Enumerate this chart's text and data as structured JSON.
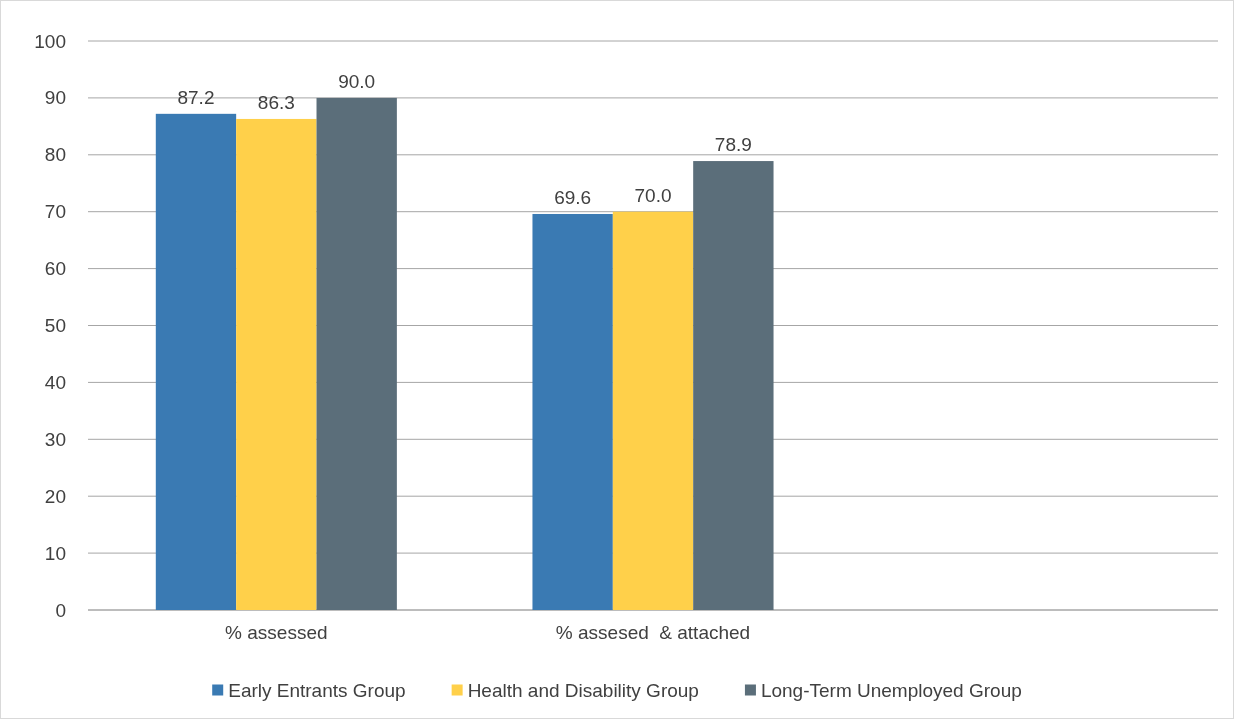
{
  "chart_data": {
    "type": "bar",
    "categories": [
      "% assessed",
      "% assesed  & attached",
      null
    ],
    "series": [
      {
        "name": "Early Entrants Group",
        "color": "#3a7ab3",
        "values": [
          87.2,
          69.6,
          null
        ]
      },
      {
        "name": "Health and Disability Group",
        "color": "#ffd04a",
        "values": [
          86.3,
          70.0,
          null
        ]
      },
      {
        "name": "Long-Term Unemployed Group",
        "color": "#5b6e7a",
        "values": [
          90.0,
          78.9,
          null
        ]
      }
    ],
    "ylim": [
      0,
      100
    ],
    "yticks": [
      0,
      10,
      20,
      30,
      40,
      50,
      60,
      70,
      80,
      90,
      100
    ],
    "grid": "y",
    "legend": "bottom",
    "value_labels": [
      [
        "87.2",
        "69.6",
        null
      ],
      [
        "86.3",
        "70.0",
        null
      ],
      [
        "90.0",
        "78.9",
        null
      ]
    ]
  }
}
